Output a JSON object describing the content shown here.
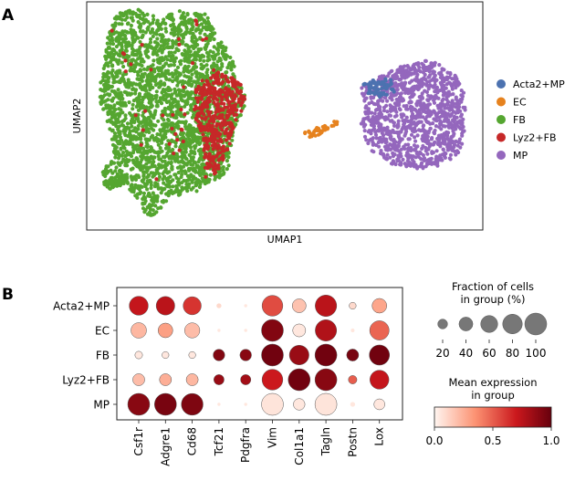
{
  "panel_labels": [
    "A",
    "B"
  ],
  "chart_data": [
    {
      "type": "scatter",
      "xlabel": "UMAP1",
      "ylabel": "UMAP2",
      "grid": false,
      "legend_position": "right",
      "legend": [
        {
          "name": "Acta2+MP",
          "color": "#4c72b0"
        },
        {
          "name": "EC",
          "color": "#e6821e"
        },
        {
          "name": "FB",
          "color": "#55a630"
        },
        {
          "name": "Lyz2+FB",
          "color": "#c62828"
        },
        {
          "name": "MP",
          "color": "#9467bd"
        }
      ]
    },
    {
      "type": "heatmap",
      "subtype": "dotplot",
      "rows": [
        "Acta2+MP",
        "EC",
        "FB",
        "Lyz2+FB",
        "MP"
      ],
      "columns": [
        "Csf1r",
        "Adgre1",
        "Cd68",
        "Tcf21",
        "Pdgfra",
        "Vim",
        "Col1a1",
        "Tagln",
        "Postn",
        "Lox"
      ],
      "fraction": [
        [
          75,
          72,
          68,
          5,
          2,
          90,
          40,
          96,
          10,
          45
        ],
        [
          50,
          45,
          48,
          2,
          2,
          100,
          35,
          95,
          3,
          78
        ],
        [
          12,
          10,
          10,
          28,
          28,
          100,
          80,
          100,
          30,
          85
        ],
        [
          30,
          30,
          30,
          22,
          22,
          90,
          100,
          100,
          15,
          75
        ],
        [
          100,
          100,
          98,
          2,
          2,
          100,
          28,
          100,
          5,
          25
        ]
      ],
      "expression": [
        [
          0.72,
          0.75,
          0.62,
          0.1,
          0.05,
          0.55,
          0.18,
          0.75,
          0.1,
          0.28
        ],
        [
          0.22,
          0.3,
          0.2,
          0.05,
          0.05,
          0.92,
          0.05,
          0.78,
          0.05,
          0.48
        ],
        [
          0.05,
          0.05,
          0.05,
          0.92,
          0.9,
          0.97,
          0.85,
          0.97,
          0.95,
          0.97
        ],
        [
          0.2,
          0.25,
          0.22,
          0.85,
          0.82,
          0.7,
          0.97,
          0.9,
          0.5,
          0.72
        ],
        [
          0.9,
          0.95,
          0.93,
          0.05,
          0.05,
          0.06,
          0.05,
          0.06,
          0.05,
          0.05
        ]
      ],
      "size_legend": {
        "title": "Fraction of cells\nin group (%)",
        "values": [
          20,
          40,
          60,
          80,
          100
        ]
      },
      "color_legend": {
        "title": "Mean expression\nin group",
        "ticks": [
          "0.0",
          "0.5",
          "1.0"
        ],
        "min": 0,
        "max": 1,
        "colors": [
          "#fff5f0",
          "#fc9272",
          "#cb181d",
          "#67000d"
        ]
      }
    }
  ]
}
